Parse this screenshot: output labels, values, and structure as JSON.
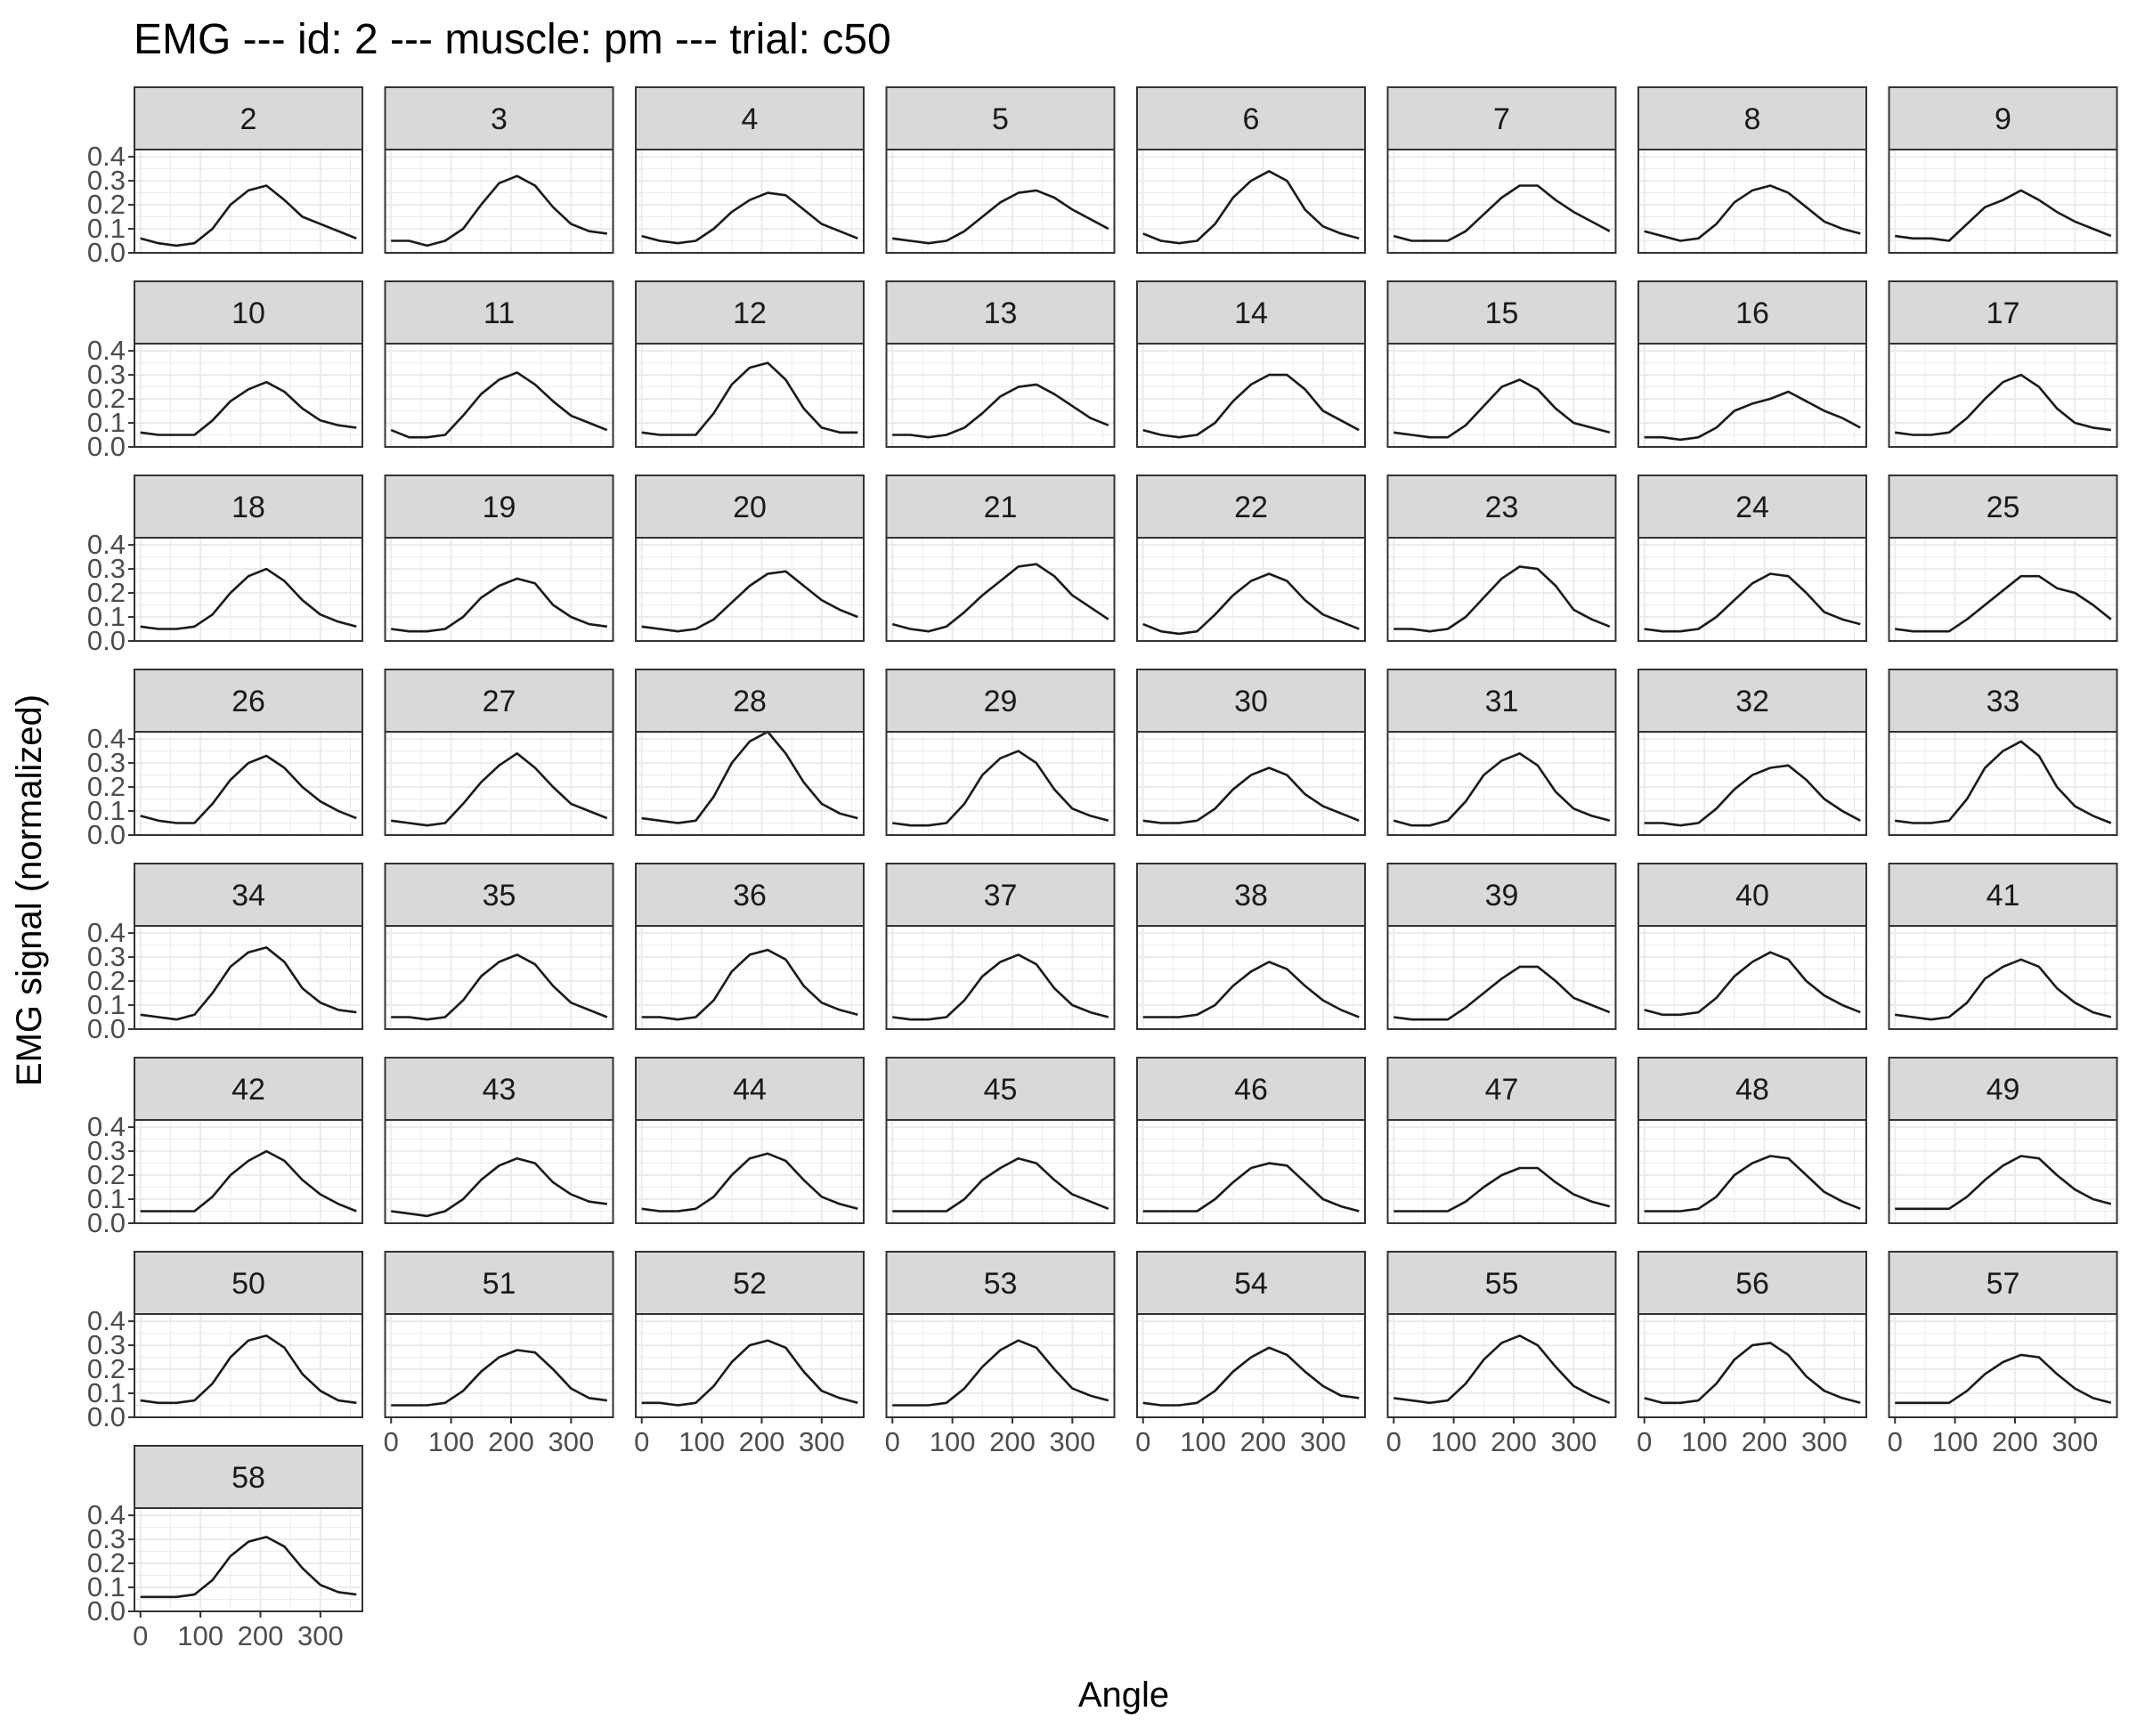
{
  "colors": {
    "line": "#1a1a1a",
    "grid": "#ebebeb",
    "panel_border": "#333333",
    "strip_fill": "#d9d9d9",
    "tick_text": "#4d4d4d"
  },
  "chart_data": {
    "type": "line",
    "title": "EMG --- id: 2 --- muscle: pm --- trial: c50",
    "xlabel": "Angle",
    "ylabel": "EMG signal (normalized)",
    "xlim": [
      -10,
      370
    ],
    "ylim": [
      0,
      0.43
    ],
    "x_ticks": [
      0,
      100,
      200,
      300
    ],
    "x_tick_labels": [
      "0",
      "100",
      "200",
      "300"
    ],
    "y_ticks": [
      0,
      0.1,
      0.2,
      0.3,
      0.4
    ],
    "y_tick_labels": [
      "0.0",
      "0.1",
      "0.2",
      "0.3",
      "0.4"
    ],
    "facet_columns": 8,
    "grid": true,
    "facet_labels": [
      "2",
      "3",
      "4",
      "5",
      "6",
      "7",
      "8",
      "9",
      "10",
      "11",
      "12",
      "13",
      "14",
      "15",
      "16",
      "17",
      "18",
      "19",
      "20",
      "21",
      "22",
      "23",
      "24",
      "25",
      "26",
      "27",
      "28",
      "29",
      "30",
      "31",
      "32",
      "33",
      "34",
      "35",
      "36",
      "37",
      "38",
      "39",
      "40",
      "41",
      "42",
      "43",
      "44",
      "45",
      "46",
      "47",
      "48",
      "49",
      "50",
      "51",
      "52",
      "53",
      "54",
      "55",
      "56",
      "57",
      "58"
    ],
    "x": [
      0,
      30,
      60,
      90,
      120,
      150,
      180,
      210,
      240,
      270,
      300,
      330,
      360
    ],
    "series": [
      {
        "label": "2",
        "values": [
          0.06,
          0.04,
          0.03,
          0.04,
          0.1,
          0.2,
          0.26,
          0.28,
          0.22,
          0.15,
          0.12,
          0.09,
          0.06
        ]
      },
      {
        "label": "3",
        "values": [
          0.05,
          0.05,
          0.03,
          0.05,
          0.1,
          0.2,
          0.29,
          0.32,
          0.28,
          0.19,
          0.12,
          0.09,
          0.08
        ]
      },
      {
        "label": "4",
        "values": [
          0.07,
          0.05,
          0.04,
          0.05,
          0.1,
          0.17,
          0.22,
          0.25,
          0.24,
          0.18,
          0.12,
          0.09,
          0.06
        ]
      },
      {
        "label": "5",
        "values": [
          0.06,
          0.05,
          0.04,
          0.05,
          0.09,
          0.15,
          0.21,
          0.25,
          0.26,
          0.23,
          0.18,
          0.14,
          0.1
        ]
      },
      {
        "label": "6",
        "values": [
          0.08,
          0.05,
          0.04,
          0.05,
          0.12,
          0.23,
          0.3,
          0.34,
          0.3,
          0.18,
          0.11,
          0.08,
          0.06
        ]
      },
      {
        "label": "7",
        "values": [
          0.07,
          0.05,
          0.05,
          0.05,
          0.09,
          0.16,
          0.23,
          0.28,
          0.28,
          0.22,
          0.17,
          0.13,
          0.09
        ]
      },
      {
        "label": "8",
        "values": [
          0.09,
          0.07,
          0.05,
          0.06,
          0.12,
          0.21,
          0.26,
          0.28,
          0.25,
          0.19,
          0.13,
          0.1,
          0.08
        ]
      },
      {
        "label": "9",
        "values": [
          0.07,
          0.06,
          0.06,
          0.05,
          0.12,
          0.19,
          0.22,
          0.26,
          0.22,
          0.17,
          0.13,
          0.1,
          0.07
        ]
      },
      {
        "label": "10",
        "values": [
          0.06,
          0.05,
          0.05,
          0.05,
          0.11,
          0.19,
          0.24,
          0.27,
          0.23,
          0.16,
          0.11,
          0.09,
          0.08
        ]
      },
      {
        "label": "11",
        "values": [
          0.07,
          0.04,
          0.04,
          0.05,
          0.13,
          0.22,
          0.28,
          0.31,
          0.26,
          0.19,
          0.13,
          0.1,
          0.07
        ]
      },
      {
        "label": "12",
        "values": [
          0.06,
          0.05,
          0.05,
          0.05,
          0.14,
          0.26,
          0.33,
          0.35,
          0.28,
          0.16,
          0.08,
          0.06,
          0.06
        ]
      },
      {
        "label": "13",
        "values": [
          0.05,
          0.05,
          0.04,
          0.05,
          0.08,
          0.14,
          0.21,
          0.25,
          0.26,
          0.22,
          0.17,
          0.12,
          0.09
        ]
      },
      {
        "label": "14",
        "values": [
          0.07,
          0.05,
          0.04,
          0.05,
          0.1,
          0.19,
          0.26,
          0.3,
          0.3,
          0.24,
          0.15,
          0.11,
          0.07
        ]
      },
      {
        "label": "15",
        "values": [
          0.06,
          0.05,
          0.04,
          0.04,
          0.09,
          0.17,
          0.25,
          0.28,
          0.24,
          0.16,
          0.1,
          0.08,
          0.06
        ]
      },
      {
        "label": "16",
        "values": [
          0.04,
          0.04,
          0.03,
          0.04,
          0.08,
          0.15,
          0.18,
          0.2,
          0.23,
          0.19,
          0.15,
          0.12,
          0.08
        ]
      },
      {
        "label": "17",
        "values": [
          0.06,
          0.05,
          0.05,
          0.06,
          0.12,
          0.2,
          0.27,
          0.3,
          0.25,
          0.16,
          0.1,
          0.08,
          0.07
        ]
      },
      {
        "label": "18",
        "values": [
          0.06,
          0.05,
          0.05,
          0.06,
          0.11,
          0.2,
          0.27,
          0.3,
          0.25,
          0.17,
          0.11,
          0.08,
          0.06
        ]
      },
      {
        "label": "19",
        "values": [
          0.05,
          0.04,
          0.04,
          0.05,
          0.1,
          0.18,
          0.23,
          0.26,
          0.24,
          0.15,
          0.1,
          0.07,
          0.06
        ]
      },
      {
        "label": "20",
        "values": [
          0.06,
          0.05,
          0.04,
          0.05,
          0.09,
          0.16,
          0.23,
          0.28,
          0.29,
          0.23,
          0.17,
          0.13,
          0.1
        ]
      },
      {
        "label": "21",
        "values": [
          0.07,
          0.05,
          0.04,
          0.06,
          0.12,
          0.19,
          0.25,
          0.31,
          0.32,
          0.27,
          0.19,
          0.14,
          0.09
        ]
      },
      {
        "label": "22",
        "values": [
          0.07,
          0.04,
          0.03,
          0.04,
          0.11,
          0.19,
          0.25,
          0.28,
          0.25,
          0.17,
          0.11,
          0.08,
          0.05
        ]
      },
      {
        "label": "23",
        "values": [
          0.05,
          0.05,
          0.04,
          0.05,
          0.1,
          0.18,
          0.26,
          0.31,
          0.3,
          0.23,
          0.13,
          0.09,
          0.06
        ]
      },
      {
        "label": "24",
        "values": [
          0.05,
          0.04,
          0.04,
          0.05,
          0.1,
          0.17,
          0.24,
          0.28,
          0.27,
          0.2,
          0.12,
          0.09,
          0.07
        ]
      },
      {
        "label": "25",
        "values": [
          0.05,
          0.04,
          0.04,
          0.04,
          0.09,
          0.15,
          0.21,
          0.27,
          0.27,
          0.22,
          0.2,
          0.15,
          0.09
        ]
      },
      {
        "label": "26",
        "values": [
          0.08,
          0.06,
          0.05,
          0.05,
          0.13,
          0.23,
          0.3,
          0.33,
          0.28,
          0.2,
          0.14,
          0.1,
          0.07
        ]
      },
      {
        "label": "27",
        "values": [
          0.06,
          0.05,
          0.04,
          0.05,
          0.13,
          0.22,
          0.29,
          0.34,
          0.28,
          0.2,
          0.13,
          0.1,
          0.07
        ]
      },
      {
        "label": "28",
        "values": [
          0.07,
          0.06,
          0.05,
          0.06,
          0.16,
          0.3,
          0.39,
          0.43,
          0.34,
          0.22,
          0.13,
          0.09,
          0.07
        ]
      },
      {
        "label": "29",
        "values": [
          0.05,
          0.04,
          0.04,
          0.05,
          0.13,
          0.25,
          0.32,
          0.35,
          0.3,
          0.19,
          0.11,
          0.08,
          0.06
        ]
      },
      {
        "label": "30",
        "values": [
          0.06,
          0.05,
          0.05,
          0.06,
          0.11,
          0.19,
          0.25,
          0.28,
          0.25,
          0.17,
          0.12,
          0.09,
          0.06
        ]
      },
      {
        "label": "31",
        "values": [
          0.06,
          0.04,
          0.04,
          0.06,
          0.14,
          0.25,
          0.31,
          0.34,
          0.29,
          0.18,
          0.11,
          0.08,
          0.06
        ]
      },
      {
        "label": "32",
        "values": [
          0.05,
          0.05,
          0.04,
          0.05,
          0.11,
          0.19,
          0.25,
          0.28,
          0.29,
          0.23,
          0.15,
          0.1,
          0.06
        ]
      },
      {
        "label": "33",
        "values": [
          0.06,
          0.05,
          0.05,
          0.06,
          0.15,
          0.28,
          0.35,
          0.39,
          0.33,
          0.2,
          0.12,
          0.08,
          0.05
        ]
      },
      {
        "label": "34",
        "values": [
          0.06,
          0.05,
          0.04,
          0.06,
          0.15,
          0.26,
          0.32,
          0.34,
          0.28,
          0.17,
          0.11,
          0.08,
          0.07
        ]
      },
      {
        "label": "35",
        "values": [
          0.05,
          0.05,
          0.04,
          0.05,
          0.12,
          0.22,
          0.28,
          0.31,
          0.27,
          0.18,
          0.11,
          0.08,
          0.05
        ]
      },
      {
        "label": "36",
        "values": [
          0.05,
          0.05,
          0.04,
          0.05,
          0.12,
          0.24,
          0.31,
          0.33,
          0.29,
          0.18,
          0.11,
          0.08,
          0.06
        ]
      },
      {
        "label": "37",
        "values": [
          0.05,
          0.04,
          0.04,
          0.05,
          0.12,
          0.22,
          0.28,
          0.31,
          0.27,
          0.17,
          0.1,
          0.07,
          0.05
        ]
      },
      {
        "label": "38",
        "values": [
          0.05,
          0.05,
          0.05,
          0.06,
          0.1,
          0.18,
          0.24,
          0.28,
          0.25,
          0.18,
          0.12,
          0.08,
          0.05
        ]
      },
      {
        "label": "39",
        "values": [
          0.05,
          0.04,
          0.04,
          0.04,
          0.09,
          0.15,
          0.21,
          0.26,
          0.26,
          0.2,
          0.13,
          0.1,
          0.07
        ]
      },
      {
        "label": "40",
        "values": [
          0.08,
          0.06,
          0.06,
          0.07,
          0.13,
          0.22,
          0.28,
          0.32,
          0.29,
          0.2,
          0.14,
          0.1,
          0.07
        ]
      },
      {
        "label": "41",
        "values": [
          0.06,
          0.05,
          0.04,
          0.05,
          0.11,
          0.21,
          0.26,
          0.29,
          0.26,
          0.17,
          0.11,
          0.07,
          0.05
        ]
      },
      {
        "label": "42",
        "values": [
          0.05,
          0.05,
          0.05,
          0.05,
          0.11,
          0.2,
          0.26,
          0.3,
          0.26,
          0.18,
          0.12,
          0.08,
          0.05
        ]
      },
      {
        "label": "43",
        "values": [
          0.05,
          0.04,
          0.03,
          0.05,
          0.1,
          0.18,
          0.24,
          0.27,
          0.25,
          0.17,
          0.12,
          0.09,
          0.08
        ]
      },
      {
        "label": "44",
        "values": [
          0.06,
          0.05,
          0.05,
          0.06,
          0.11,
          0.2,
          0.27,
          0.29,
          0.26,
          0.18,
          0.11,
          0.08,
          0.06
        ]
      },
      {
        "label": "45",
        "values": [
          0.05,
          0.05,
          0.05,
          0.05,
          0.1,
          0.18,
          0.23,
          0.27,
          0.25,
          0.18,
          0.12,
          0.09,
          0.06
        ]
      },
      {
        "label": "46",
        "values": [
          0.05,
          0.05,
          0.05,
          0.05,
          0.1,
          0.17,
          0.23,
          0.25,
          0.24,
          0.17,
          0.1,
          0.07,
          0.05
        ]
      },
      {
        "label": "47",
        "values": [
          0.05,
          0.05,
          0.05,
          0.05,
          0.09,
          0.15,
          0.2,
          0.23,
          0.23,
          0.17,
          0.12,
          0.09,
          0.07
        ]
      },
      {
        "label": "48",
        "values": [
          0.05,
          0.05,
          0.05,
          0.06,
          0.11,
          0.2,
          0.25,
          0.28,
          0.27,
          0.2,
          0.13,
          0.09,
          0.06
        ]
      },
      {
        "label": "49",
        "values": [
          0.06,
          0.06,
          0.06,
          0.06,
          0.11,
          0.18,
          0.24,
          0.28,
          0.27,
          0.2,
          0.14,
          0.1,
          0.08
        ]
      },
      {
        "label": "50",
        "values": [
          0.07,
          0.06,
          0.06,
          0.07,
          0.14,
          0.25,
          0.32,
          0.34,
          0.29,
          0.18,
          0.11,
          0.07,
          0.06
        ]
      },
      {
        "label": "51",
        "values": [
          0.05,
          0.05,
          0.05,
          0.06,
          0.11,
          0.19,
          0.25,
          0.28,
          0.27,
          0.2,
          0.12,
          0.08,
          0.07
        ]
      },
      {
        "label": "52",
        "values": [
          0.06,
          0.06,
          0.05,
          0.06,
          0.13,
          0.23,
          0.3,
          0.32,
          0.29,
          0.19,
          0.11,
          0.08,
          0.06
        ]
      },
      {
        "label": "53",
        "values": [
          0.05,
          0.05,
          0.05,
          0.06,
          0.12,
          0.21,
          0.28,
          0.32,
          0.29,
          0.2,
          0.12,
          0.09,
          0.07
        ]
      },
      {
        "label": "54",
        "values": [
          0.06,
          0.05,
          0.05,
          0.06,
          0.11,
          0.19,
          0.25,
          0.29,
          0.26,
          0.19,
          0.13,
          0.09,
          0.08
        ]
      },
      {
        "label": "55",
        "values": [
          0.08,
          0.07,
          0.06,
          0.07,
          0.14,
          0.24,
          0.31,
          0.34,
          0.3,
          0.21,
          0.13,
          0.09,
          0.06
        ]
      },
      {
        "label": "56",
        "values": [
          0.08,
          0.06,
          0.06,
          0.07,
          0.14,
          0.24,
          0.3,
          0.31,
          0.26,
          0.17,
          0.11,
          0.08,
          0.06
        ]
      },
      {
        "label": "57",
        "values": [
          0.06,
          0.06,
          0.06,
          0.06,
          0.11,
          0.18,
          0.23,
          0.26,
          0.25,
          0.18,
          0.12,
          0.08,
          0.06
        ]
      },
      {
        "label": "58",
        "values": [
          0.06,
          0.06,
          0.06,
          0.07,
          0.13,
          0.23,
          0.29,
          0.31,
          0.27,
          0.18,
          0.11,
          0.08,
          0.07
        ]
      }
    ]
  }
}
